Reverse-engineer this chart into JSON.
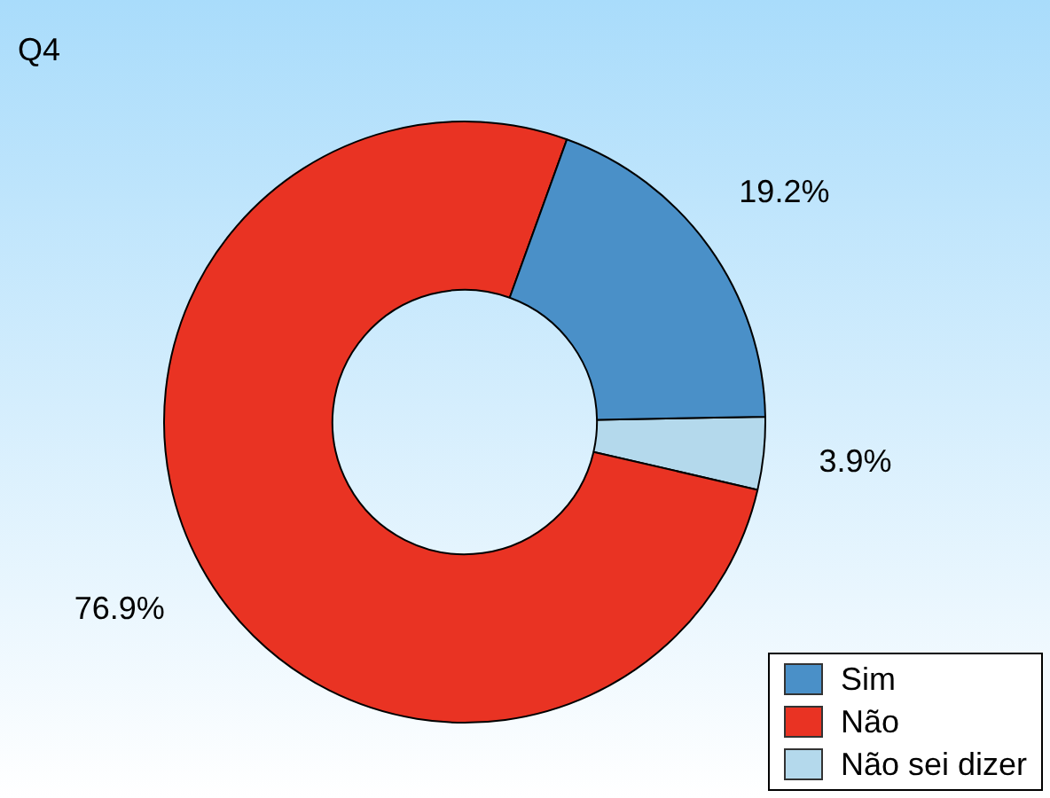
{
  "chart_data": {
    "type": "donut",
    "title": "Q4",
    "categories": [
      "Sim",
      "Não",
      "Não sei dizer"
    ],
    "values": [
      19.2,
      76.9,
      3.9
    ],
    "colors": [
      "#4a90c8",
      "#e93323",
      "#b4d9ec"
    ],
    "value_labels": [
      "19.2%",
      "76.9%",
      "3.9%"
    ],
    "legend": "bottom right"
  }
}
